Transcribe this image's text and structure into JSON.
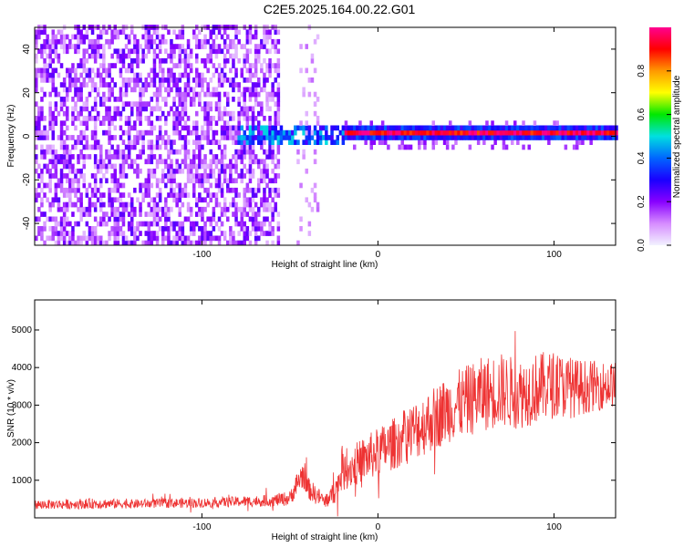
{
  "title": "C2E5.2025.164.00.22.G01",
  "chart_data": [
    {
      "type": "heatmap",
      "xlabel": "Height of straight line (km)",
      "ylabel": "Frequency (Hz)",
      "xlim": [
        -195,
        135
      ],
      "ylim": [
        -50,
        50
      ],
      "xticks": [
        -100,
        0,
        100
      ],
      "yticks": [
        -40,
        -20,
        0,
        20,
        40
      ],
      "colorbar": {
        "label": "Normalized spectral amplitude",
        "range": [
          0,
          1
        ],
        "ticks": [
          "0.0",
          "0.2",
          "0.4",
          "0.6",
          "0.8"
        ],
        "tick_values": [
          0,
          0.2,
          0.4,
          0.6,
          0.8
        ],
        "colors": [
          "#f2f2ff",
          "#d68cff",
          "#8800ff",
          "#1a00ff",
          "#0066ff",
          "#00e0e0",
          "#00e800",
          "#ffff00",
          "#ff9900",
          "#ff0000",
          "#ff0090"
        ]
      },
      "regions": [
        {
          "x": [
            -195,
            -57
          ],
          "freq_spread_hz": 50,
          "amplitude": [
            0.05,
            0.25
          ],
          "description_value": "noise"
        },
        {
          "x": [
            -80,
            -20
          ],
          "freq_spread_hz": 5,
          "amplitude": [
            0.25,
            0.5
          ]
        },
        {
          "x": [
            -20,
            135
          ],
          "freq_center_hz": 0,
          "freq_spread_hz": 3,
          "amplitude": [
            0.6,
            1.0
          ]
        }
      ]
    },
    {
      "type": "line",
      "xlabel": "Height of straight line (km)",
      "ylabel": "SNR (10 * v/v)",
      "xlim": [
        -195,
        135
      ],
      "ylim": [
        0,
        5800
      ],
      "xticks": [
        -100,
        0,
        100
      ],
      "yticks": [
        1000,
        2000,
        3000,
        4000,
        5000
      ],
      "series": [
        {
          "color": "#ee3333",
          "x": [
            -195,
            -180,
            -160,
            -140,
            -120,
            -100,
            -80,
            -60,
            -50,
            -45,
            -42,
            -40,
            -35,
            -30,
            -25,
            -20,
            -10,
            0,
            10,
            20,
            30,
            40,
            50,
            60,
            70,
            80,
            90,
            100,
            110,
            120,
            135
          ],
          "mean": [
            350,
            360,
            380,
            370,
            390,
            400,
            430,
            460,
            520,
            1000,
            1200,
            800,
            600,
            450,
            650,
            1200,
            1500,
            1750,
            2000,
            2300,
            2600,
            2900,
            3100,
            3300,
            3400,
            3300,
            3450,
            3550,
            3450,
            3500,
            3550
          ],
          "spread": [
            120,
            130,
            140,
            120,
            130,
            130,
            140,
            160,
            200,
            350,
            400,
            300,
            250,
            200,
            300,
            500,
            600,
            650,
            700,
            800,
            850,
            900,
            950,
            1000,
            1000,
            950,
            950,
            900,
            800,
            700,
            600
          ]
        }
      ]
    }
  ]
}
